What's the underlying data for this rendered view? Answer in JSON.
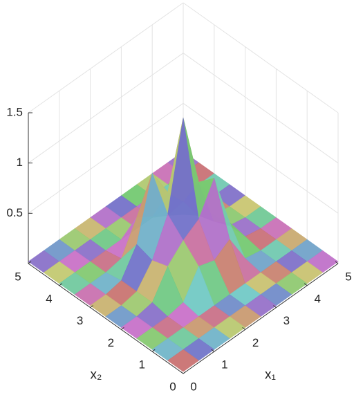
{
  "chart_data": {
    "type": "surface3d",
    "xlabel": "x₁",
    "ylabel": "x₂",
    "x": [
      0,
      0.5,
      1,
      1.5,
      2,
      2.5,
      3,
      3.5,
      4,
      4.5,
      5
    ],
    "y": [
      0,
      0.5,
      1,
      1.5,
      2,
      2.5,
      3,
      3.5,
      4,
      4.5,
      5
    ],
    "z": [
      [
        0.02,
        0.02,
        0.02,
        0.02,
        0.02,
        0.02,
        0.02,
        0.02,
        0.02,
        0.02,
        0.02
      ],
      [
        0.02,
        0.02,
        0.02,
        0.02,
        0.02,
        0.02,
        0.02,
        0.02,
        0.02,
        0.02,
        0.02
      ],
      [
        0.02,
        0.02,
        0.02,
        0.02,
        0.02,
        0.02,
        0.02,
        0.02,
        0.02,
        0.02,
        0.02
      ],
      [
        0.02,
        0.02,
        0.02,
        0.05,
        0.3,
        0.25,
        0.35,
        0.05,
        0.02,
        0.02,
        0.02
      ],
      [
        0.02,
        0.02,
        0.05,
        0.3,
        0.45,
        0.55,
        0.85,
        0.3,
        0.05,
        0.02,
        0.02
      ],
      [
        0.02,
        0.02,
        0.05,
        0.25,
        0.6,
        1.45,
        0.7,
        0.2,
        0.05,
        0.02,
        0.02
      ],
      [
        0.02,
        0.02,
        0.05,
        0.3,
        0.9,
        0.6,
        0.4,
        0.15,
        0.05,
        0.02,
        0.02
      ],
      [
        0.02,
        0.02,
        0.02,
        0.05,
        0.35,
        0.25,
        0.15,
        0.05,
        0.02,
        0.02,
        0.02
      ],
      [
        0.02,
        0.02,
        0.02,
        0.02,
        0.02,
        0.02,
        0.02,
        0.02,
        0.02,
        0.02,
        0.02
      ],
      [
        0.02,
        0.02,
        0.02,
        0.02,
        0.02,
        0.02,
        0.02,
        0.02,
        0.02,
        0.02,
        0.02
      ],
      [
        0.02,
        0.02,
        0.02,
        0.02,
        0.02,
        0.02,
        0.02,
        0.02,
        0.02,
        0.02,
        0.02
      ]
    ],
    "xlim": [
      0,
      5
    ],
    "ylim": [
      0,
      5
    ],
    "zlim": [
      0,
      1.5
    ],
    "xticks": [
      0,
      1,
      2,
      3,
      4,
      5
    ],
    "yticks": [
      0,
      1,
      2,
      3,
      4,
      5
    ],
    "zticks": [
      0.5,
      1,
      1.5
    ],
    "grid": true
  }
}
